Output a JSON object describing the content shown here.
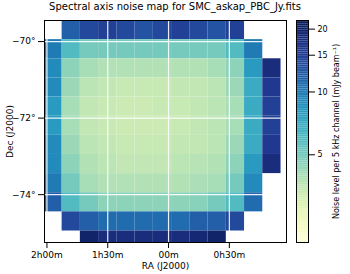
{
  "chart_data": {
    "type": "heatmap",
    "title": "Spectral axis noise map for SMC_askap_PBC_Jy.fits",
    "x_label": "RA (J2000)",
    "y_label": "Dec (J2000)",
    "xlim": [
      2.02,
      0.03
    ],
    "ylim": [
      -75.25,
      -69.45
    ],
    "xticks": [
      {
        "value": 2,
        "label": "2h00m"
      },
      {
        "value": 1.5,
        "label": "1h30m"
      },
      {
        "value": 1,
        "label": "00m"
      },
      {
        "value": 0.5,
        "label": "0h30m"
      }
    ],
    "yticks": [
      {
        "value": -70,
        "label": "−70°"
      },
      {
        "value": -72,
        "label": "−72°"
      },
      {
        "value": -74,
        "label": "−74°"
      }
    ],
    "grid": true,
    "color": "YlGnBu",
    "ra": [
      1.95,
      1.8,
      1.65,
      1.5,
      1.35,
      1.2,
      1.05,
      0.9,
      0.75,
      0.6,
      0.45,
      0.3,
      0.15
    ],
    "dec": [
      -69.7,
      -70.2,
      -70.7,
      -71.2,
      -71.7,
      -72.2,
      -72.7,
      -73.2,
      -73.7,
      -74.2,
      -74.7,
      -75.2
    ],
    "noise": [
      [
        null,
        12,
        14,
        15,
        14,
        13,
        14,
        15,
        14,
        13,
        15,
        null,
        null
      ],
      [
        10,
        6,
        5,
        5,
        5,
        5,
        5,
        5,
        5,
        5,
        6,
        10,
        null
      ],
      [
        9,
        4.5,
        4,
        3.8,
        3.8,
        3.8,
        3.8,
        3.8,
        3.8,
        4,
        4.5,
        8,
        18
      ],
      [
        9,
        4.2,
        3.6,
        3.5,
        3.4,
        3.4,
        3.4,
        3.5,
        3.5,
        3.6,
        4.2,
        7,
        16
      ],
      [
        8,
        4,
        3.5,
        3.4,
        3.3,
        3.3,
        3.4,
        3.4,
        3.5,
        3.6,
        4,
        7,
        15
      ],
      [
        8,
        4,
        3.5,
        3.4,
        3.3,
        3.3,
        3.3,
        3.4,
        3.5,
        3.6,
        4,
        7,
        15
      ],
      [
        9,
        4.2,
        3.6,
        3.5,
        3.4,
        3.4,
        3.4,
        3.5,
        3.5,
        3.6,
        4.2,
        7,
        16
      ],
      [
        9,
        4.5,
        3.8,
        3.6,
        3.5,
        3.5,
        3.5,
        3.6,
        3.7,
        3.8,
        4.5,
        8,
        18
      ],
      [
        10,
        5,
        4,
        3.8,
        3.8,
        3.8,
        3.8,
        3.8,
        3.9,
        4,
        5,
        9,
        null
      ],
      [
        12,
        6,
        5,
        4.5,
        4.5,
        4.5,
        4.5,
        4.5,
        4.6,
        5,
        6,
        11,
        null
      ],
      [
        null,
        14,
        12,
        11,
        11,
        11,
        11,
        11,
        12,
        12,
        14,
        null,
        null
      ],
      [
        null,
        null,
        20,
        18,
        18,
        18,
        18,
        18,
        19,
        20,
        null,
        null,
        null
      ]
    ],
    "colorbar_label": "Noise level per 5 kHz channel (mJy beam⁻¹)",
    "colorbar_lim": [
      1.9,
      22
    ],
    "colorbar_ticks": [
      5,
      10,
      15,
      20
    ]
  }
}
